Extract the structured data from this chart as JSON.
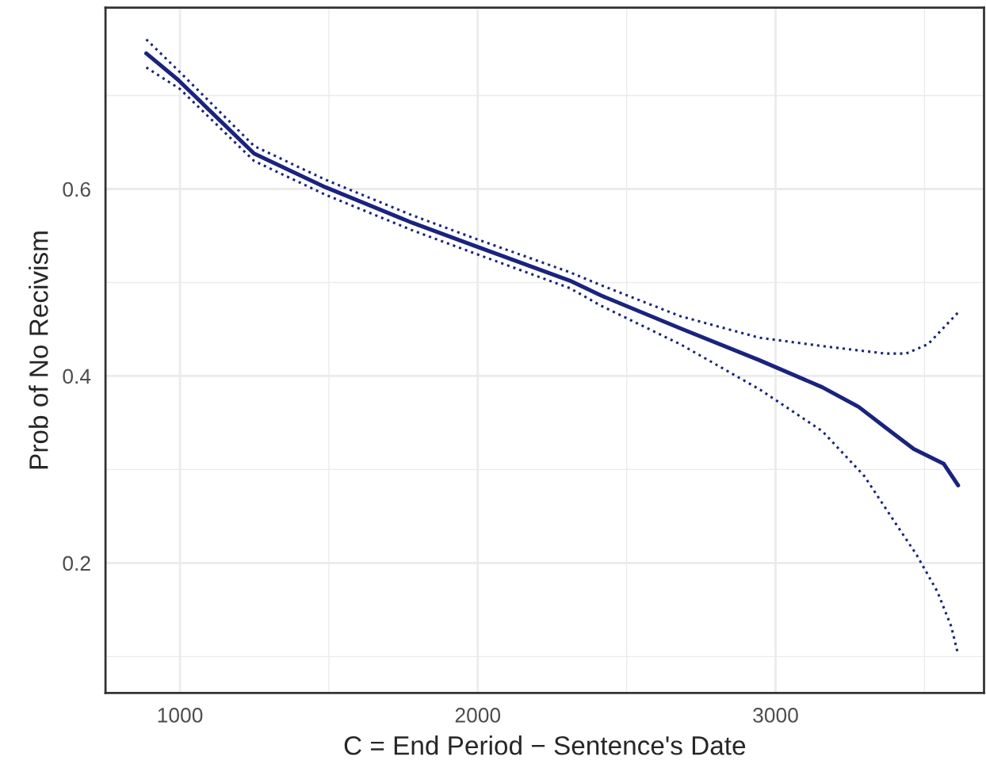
{
  "chart_data": {
    "type": "line",
    "xlabel": "C = End Period − Sentence's Date",
    "ylabel": "Prob of No Recivism",
    "xlim": [
      750,
      3700
    ],
    "ylim": [
      0.061,
      0.794
    ],
    "xticks": [
      1000,
      2000,
      3000
    ],
    "yticks": [
      0.2,
      0.4,
      0.6
    ],
    "grid": true,
    "series": [
      {
        "color": "#1a237e",
        "line_style": "solid",
        "x": [
          887,
          993,
          1249,
          1488,
          1779,
          1991,
          2309,
          2415,
          2680,
          2945,
          3157,
          3279,
          3385,
          3464,
          3565,
          3613
        ],
        "values": [
          0.745,
          0.717,
          0.638,
          0.602,
          0.564,
          0.539,
          0.502,
          0.486,
          0.451,
          0.417,
          0.388,
          0.367,
          0.341,
          0.322,
          0.306,
          0.283
        ]
      },
      {
        "color": "#1a237e",
        "line_style": "dotted",
        "x": [
          887,
          1000,
          1249,
          1488,
          1779,
          1991,
          2309,
          2415,
          2680,
          2945,
          3157,
          3369,
          3438,
          3512,
          3613
        ],
        "values": [
          0.76,
          0.725,
          0.646,
          0.61,
          0.572,
          0.547,
          0.511,
          0.497,
          0.464,
          0.441,
          0.432,
          0.424,
          0.424,
          0.434,
          0.468
        ]
      },
      {
        "color": "#1a237e",
        "line_style": "dotted",
        "x": [
          887,
          1000,
          1249,
          1488,
          1779,
          1991,
          2309,
          2415,
          2680,
          2945,
          3157,
          3298,
          3404,
          3475,
          3544,
          3590,
          3613
        ],
        "values": [
          0.73,
          0.707,
          0.63,
          0.594,
          0.556,
          0.531,
          0.494,
          0.475,
          0.434,
          0.386,
          0.341,
          0.293,
          0.242,
          0.208,
          0.169,
          0.132,
          0.102
        ]
      }
    ]
  }
}
